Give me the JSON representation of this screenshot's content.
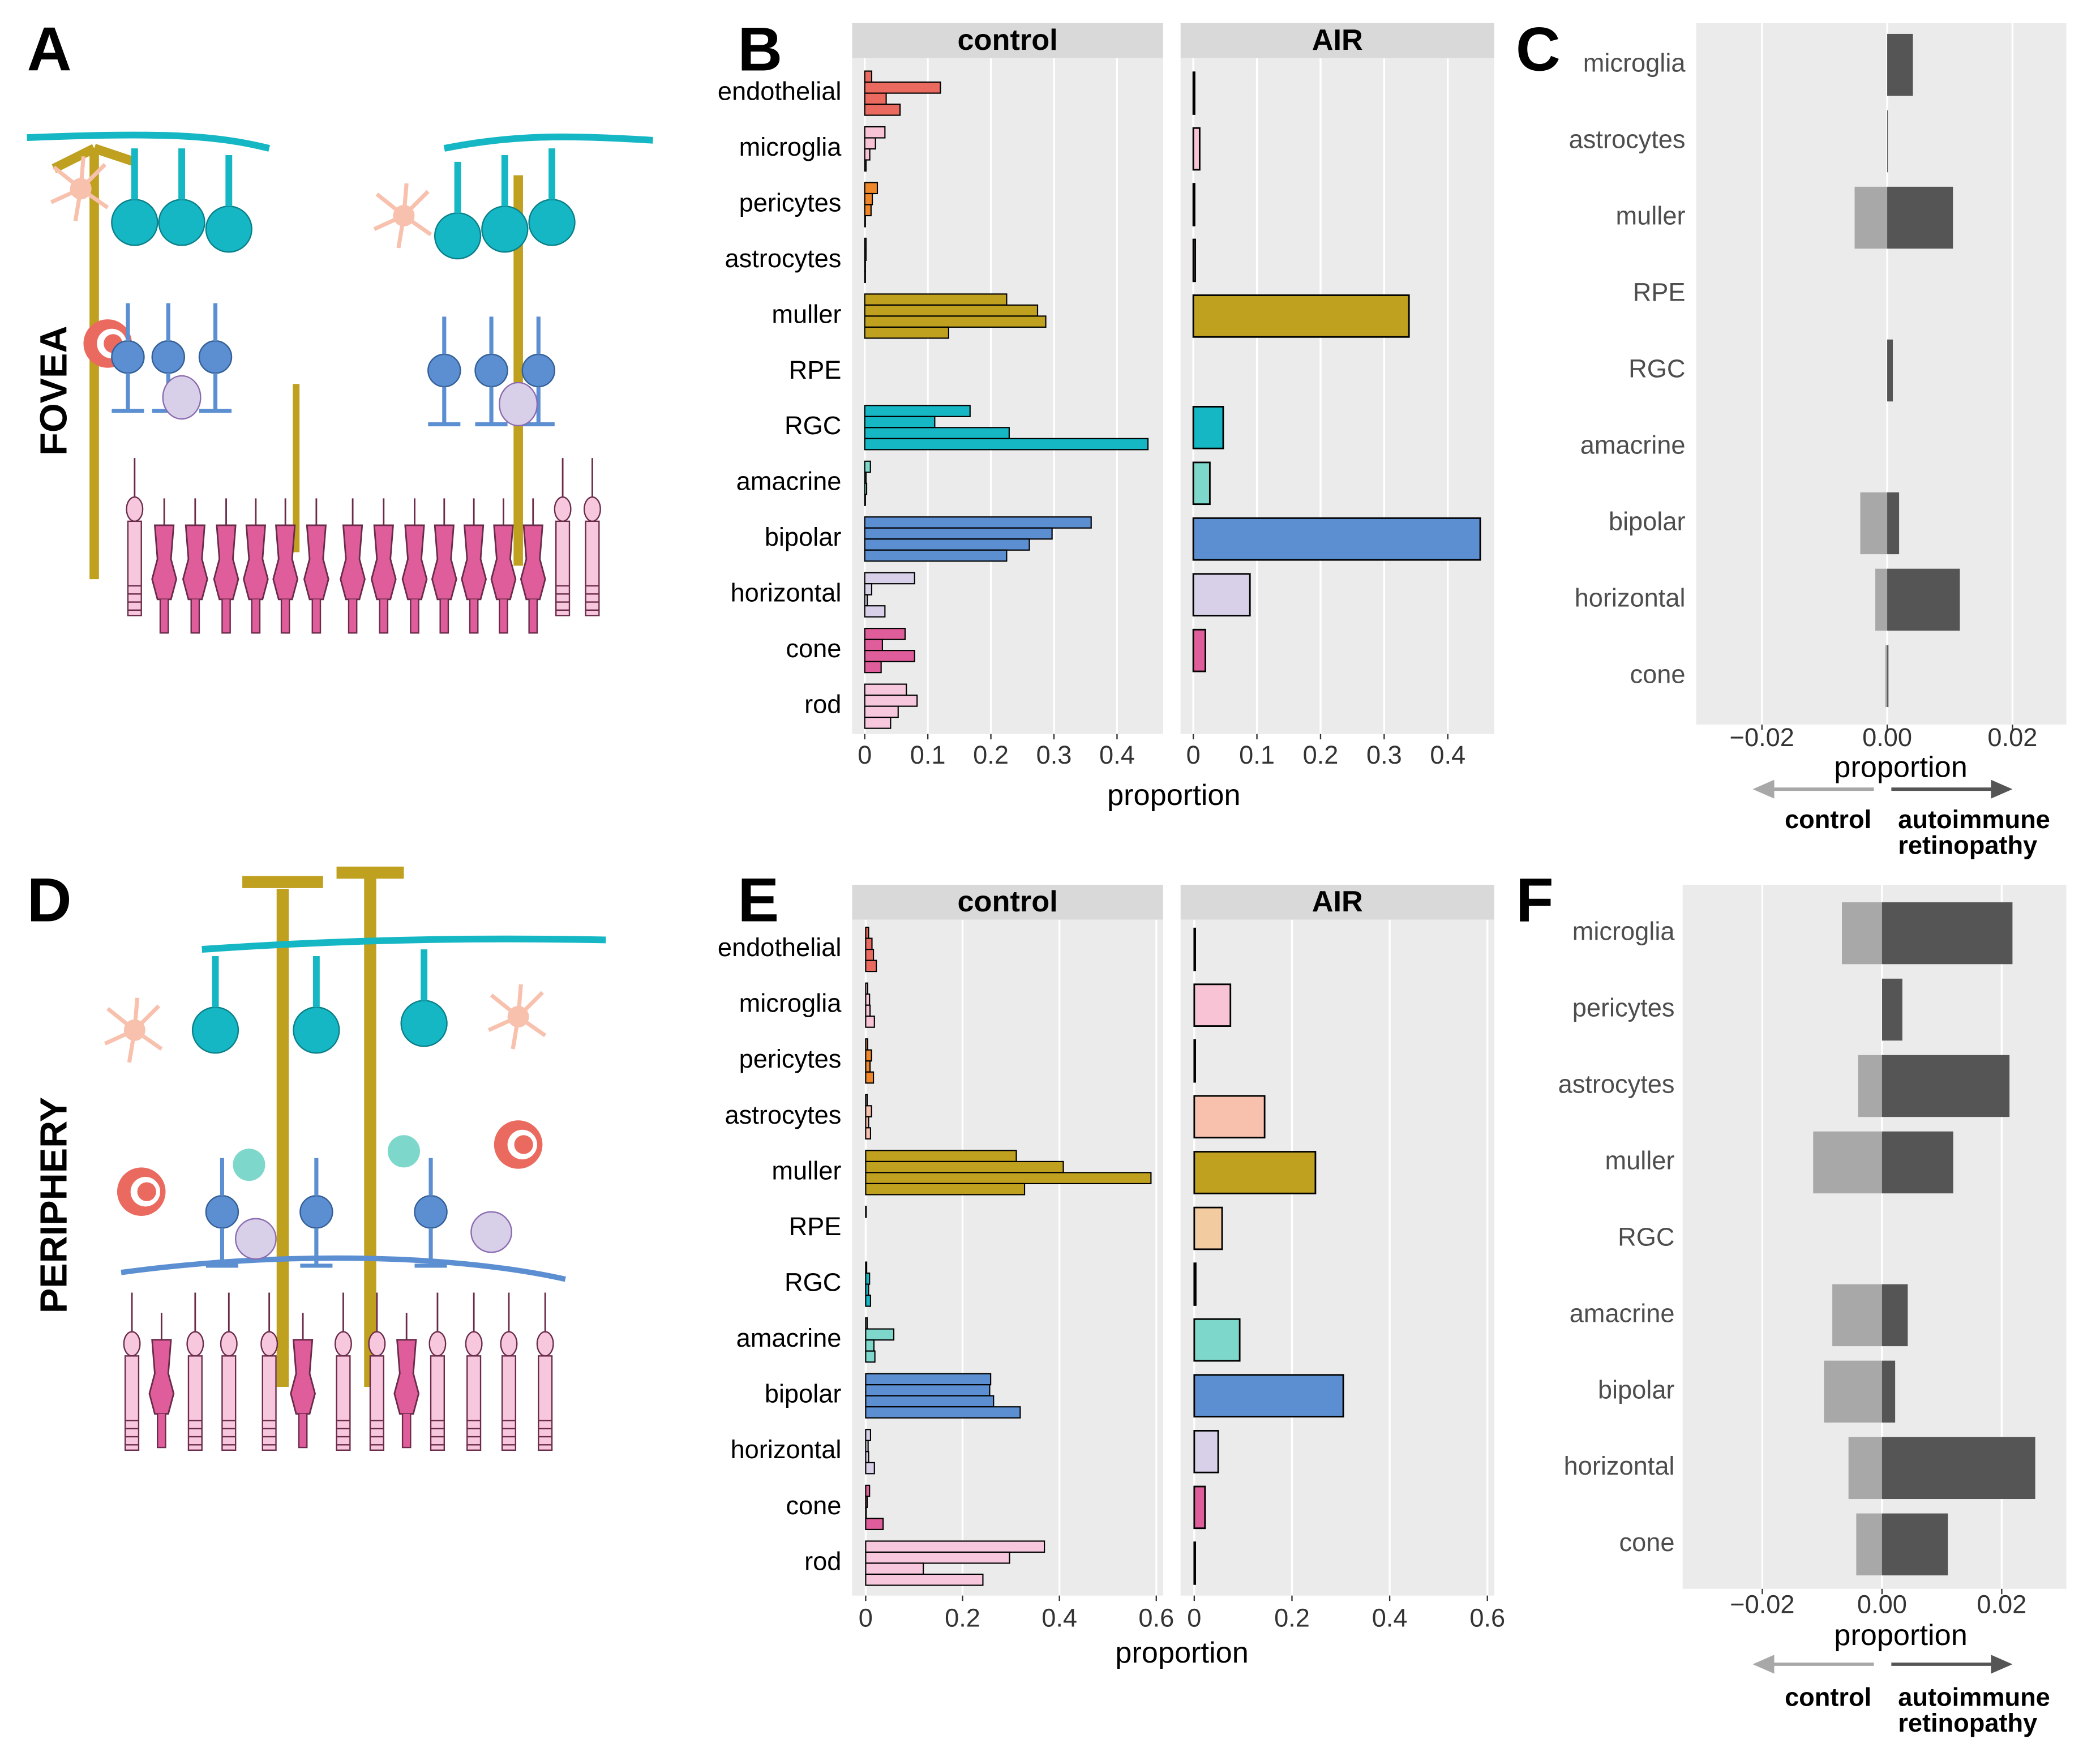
{
  "illustrations": [
    {
      "label": "A",
      "region": "FOVEA"
    },
    {
      "label": "D",
      "region": "PERIPHERY"
    }
  ],
  "chart_data": [
    {
      "type": "faceted-hbar",
      "label": "B",
      "categories": [
        "endothelial",
        "microglia",
        "pericytes",
        "astrocytes",
        "muller",
        "RPE",
        "RGC",
        "amacrine",
        "bipolar",
        "horizontal",
        "cone",
        "rod"
      ],
      "colors": [
        "#ea6a5f",
        "#f7c3d5",
        "#f0862a",
        "#f8c1ae",
        "#bfa01f",
        "#f2cba0",
        "#14b7c3",
        "#7dd8cb",
        "#5b8fd1",
        "#d8cfe8",
        "#e05d9b",
        "#f6c7dd"
      ],
      "facets": [
        {
          "title": "control",
          "values": [
            [
              0.011,
              0.12,
              0.034,
              0.056
            ],
            [
              0.032,
              0.017,
              0.008,
              0.002
            ],
            [
              0.02,
              0.012,
              0.01,
              0.001
            ],
            [
              0.002,
              0.002,
              0.001,
              0.001
            ],
            [
              0.225,
              0.274,
              0.287,
              0.133
            ],
            [
              0,
              0,
              0,
              0
            ],
            [
              0.167,
              0.111,
              0.229,
              0.449
            ],
            [
              0.009,
              0.002,
              0.003,
              0.001
            ],
            [
              0.359,
              0.297,
              0.261,
              0.225
            ],
            [
              0.079,
              0.011,
              0.004,
              0.032
            ],
            [
              0.064,
              0.028,
              0.079,
              0.026
            ],
            [
              0.066,
              0.083,
              0.053,
              0.041
            ]
          ]
        },
        {
          "title": "AIR",
          "values": [
            0.002,
            0.01,
            0.002,
            0.003,
            0.339,
            0,
            0.047,
            0.026,
            0.451,
            0.089,
            0.019,
            0
          ]
        }
      ],
      "xlim": [
        -0.02,
        0.473
      ],
      "xticks": [
        0,
        0.1,
        0.2,
        0.3,
        0.4
      ],
      "xlabel": "proportion",
      "grid": true
    },
    {
      "type": "diverging-hbar",
      "label": "C",
      "categories": [
        "microglia",
        "astrocytes",
        "muller",
        "RPE",
        "RGC",
        "amacrine",
        "bipolar",
        "horizontal",
        "cone"
      ],
      "series": [
        {
          "color": "#a8a8a8",
          "values": [
            0,
            0,
            -0.0052,
            0,
            0,
            0,
            -0.0043,
            -0.0019,
            -0.0003
          ]
        },
        {
          "color": "#555555",
          "values": [
            0.0041,
            0.0001,
            0.0105,
            0,
            0.0009,
            0,
            0.0019,
            0.0116,
            0.0002
          ]
        }
      ],
      "xlim": [
        -0.0305,
        0.0286
      ],
      "xticks": [
        {
          "value": -0.02,
          "label": "−0.02"
        },
        {
          "value": 0,
          "label": "0.00"
        },
        0.02
      ],
      "xlabel": "proportion",
      "direction_labels": {
        "left": "control",
        "right": [
          "autoimmune",
          "retinopathy"
        ]
      },
      "grid": true
    },
    {
      "type": "faceted-hbar",
      "label": "E",
      "categories": [
        "endothelial",
        "microglia",
        "pericytes",
        "astrocytes",
        "muller",
        "RPE",
        "RGC",
        "amacrine",
        "bipolar",
        "horizontal",
        "cone",
        "rod"
      ],
      "colors": [
        "#ea6a5f",
        "#f7c3d5",
        "#f0862a",
        "#f8c1ae",
        "#bfa01f",
        "#f2cba0",
        "#14b7c3",
        "#7dd8cb",
        "#5b8fd1",
        "#d8cfe8",
        "#e05d9b",
        "#f6c7dd"
      ],
      "facets": [
        {
          "title": "control",
          "values": [
            [
              0.006,
              0.013,
              0.016,
              0.022
            ],
            [
              0.004,
              0.008,
              0.009,
              0.018
            ],
            [
              0.004,
              0.012,
              0.009,
              0.016
            ],
            [
              0.003,
              0.012,
              0.006,
              0.01
            ],
            [
              0.311,
              0.408,
              0.589,
              0.328
            ],
            [
              0.001,
              0,
              0,
              0
            ],
            [
              0.002,
              0.008,
              0.006,
              0.01
            ],
            [
              0.003,
              0.058,
              0.017,
              0.019
            ],
            [
              0.258,
              0.256,
              0.264,
              0.319
            ],
            [
              0.01,
              0.005,
              0.006,
              0.018
            ],
            [
              0.008,
              0.003,
              0.001,
              0.036
            ],
            [
              0.369,
              0.297,
              0.119,
              0.242
            ]
          ]
        },
        {
          "title": "AIR",
          "values": [
            0.002,
            0.074,
            0.002,
            0.144,
            0.248,
            0.057,
            0.003,
            0.093,
            0.305,
            0.049,
            0.022,
            0.002
          ]
        }
      ],
      "xlim": [
        -0.028,
        0.614
      ],
      "xticks": [
        0,
        0.2,
        0.4,
        0.6
      ],
      "xlabel": "proportion",
      "grid": true
    },
    {
      "type": "diverging-hbar",
      "label": "F",
      "categories": [
        "microglia",
        "pericytes",
        "astrocytes",
        "muller",
        "RGC",
        "amacrine",
        "bipolar",
        "horizontal",
        "cone"
      ],
      "series": [
        {
          "color": "#a8a8a8",
          "values": [
            -0.0067,
            0,
            -0.004,
            -0.0115,
            0,
            -0.0083,
            -0.0097,
            -0.0056,
            -0.0043
          ]
        },
        {
          "color": "#555555",
          "values": [
            0.0218,
            0.0034,
            0.0213,
            0.0119,
            0,
            0.0043,
            0.0022,
            0.0256,
            0.011
          ]
        }
      ],
      "xlim": [
        -0.0333,
        0.0308
      ],
      "xticks": [
        {
          "value": -0.02,
          "label": "−0.02"
        },
        {
          "value": 0,
          "label": "0.00"
        },
        0.02
      ],
      "xlabel": "proportion",
      "direction_labels": {
        "left": "control",
        "right": [
          "autoimmune",
          "retinopathy"
        ]
      },
      "grid": true
    }
  ]
}
